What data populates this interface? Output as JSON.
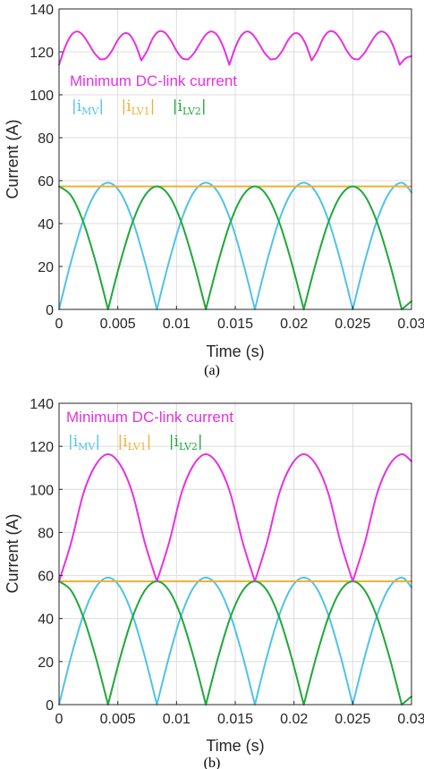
{
  "chart_data": [
    {
      "type": "line",
      "panel_label": "(a)",
      "xlabel": "Time (s)",
      "ylabel": "Current (A)",
      "xlim": [
        0,
        0.03
      ],
      "ylim": [
        0,
        140
      ],
      "x_ticks": [
        0,
        0.005,
        0.01,
        0.015,
        0.02,
        0.025,
        0.03
      ],
      "x_tick_labels": [
        "0",
        "0.005",
        "0.01",
        "0.015",
        "0.02",
        "0.025",
        "0.03"
      ],
      "y_ticks": [
        0,
        20,
        40,
        60,
        80,
        100,
        120,
        140
      ],
      "y_tick_labels": [
        "0",
        "20",
        "40",
        "60",
        "80",
        "100",
        "120",
        "140"
      ],
      "grid": true,
      "annotation": "Minimum DC-link current",
      "legend_text": {
        "i_mv": "|i",
        "i_mv_sub": "MV",
        "i_lv1": "|i",
        "i_lv1_sub": "LV1",
        "i_lv2": "|i",
        "i_lv2_sub": "LV2"
      },
      "legend_placement": "upper-left, inline text",
      "colors": {
        "mv": "#4fc3e8",
        "lv1": "#f0b030",
        "lv2": "#1fa83a",
        "min": "#e632e0"
      },
      "series": [
        {
          "key": "mv",
          "x": [
            0,
            0.00104,
            0.00208,
            0.00313,
            0.00417,
            0.00521,
            0.00625,
            0.00729,
            0.00833,
            0.00938,
            0.01042,
            0.01146,
            0.0125,
            0.01354,
            0.01458,
            0.01563,
            0.01667,
            0.01771,
            0.01875,
            0.01979,
            0.02083,
            0.02188,
            0.02292,
            0.02396,
            0.025,
            0.02604,
            0.02708,
            0.02813,
            0.02917,
            0.03
          ],
          "y": [
            0,
            22.6,
            41.7,
            54.5,
            59,
            54.5,
            41.7,
            22.6,
            0,
            22.6,
            41.7,
            54.5,
            59,
            54.5,
            41.7,
            22.6,
            0,
            22.6,
            41.7,
            54.5,
            59,
            54.5,
            41.7,
            22.6,
            0,
            22.6,
            41.7,
            54.5,
            59,
            54.5
          ]
        },
        {
          "key": "lv1",
          "x": [
            0,
            0.03
          ],
          "y": [
            57.3,
            57.3
          ]
        },
        {
          "key": "lv2",
          "x": [
            0,
            0.00104,
            0.00208,
            0.00313,
            0.00417,
            0.00521,
            0.00625,
            0.00729,
            0.00833,
            0.00938,
            0.01042,
            0.01146,
            0.0125,
            0.01354,
            0.01458,
            0.01563,
            0.01667,
            0.01771,
            0.01875,
            0.01979,
            0.02083,
            0.02188,
            0.02292,
            0.02396,
            0.025,
            0.02604,
            0.02708,
            0.02813,
            0.02917,
            0.03
          ],
          "y": [
            57.3,
            52.9,
            40.5,
            21.9,
            0,
            21.9,
            40.5,
            52.9,
            57.3,
            52.9,
            40.5,
            21.9,
            0,
            21.9,
            40.5,
            52.9,
            57.3,
            52.9,
            40.5,
            21.9,
            0,
            21.9,
            40.5,
            52.9,
            57.3,
            52.9,
            40.5,
            21.9,
            0,
            3.8
          ]
        },
        {
          "key": "min",
          "x": [
            0,
            0.0005,
            0.001,
            0.0015,
            0.002,
            0.0025,
            0.003,
            0.0035,
            0.004,
            0.0045,
            0.005,
            0.0055,
            0.006,
            0.0065,
            0.007,
            0.0075,
            0.008,
            0.0085,
            0.009,
            0.0095,
            0.01,
            0.0105,
            0.011,
            0.0115,
            0.012,
            0.0125,
            0.013,
            0.0135,
            0.014,
            0.0145,
            0.015,
            0.0155,
            0.016,
            0.0165,
            0.017,
            0.0175,
            0.018,
            0.0185,
            0.019,
            0.0195,
            0.02,
            0.0205,
            0.021,
            0.0215,
            0.022,
            0.0225,
            0.023,
            0.0235,
            0.024,
            0.0245,
            0.025,
            0.0255,
            0.026,
            0.0265,
            0.027,
            0.0275,
            0.028,
            0.0285,
            0.029,
            0.0295,
            0.03
          ],
          "y": [
            114,
            122,
            127.5,
            129.5,
            128,
            124,
            119.5,
            116.5,
            117,
            120.5,
            125.5,
            128.5,
            128,
            123.5,
            116,
            120.5,
            126.5,
            129.5,
            129,
            125.5,
            120.5,
            117,
            116.5,
            119.5,
            124,
            128,
            129.5,
            127.5,
            122,
            114,
            122,
            127.5,
            129.5,
            128,
            124,
            119.5,
            116.5,
            117,
            120.5,
            125.5,
            128.5,
            128,
            123.5,
            116,
            120.5,
            126.5,
            129.5,
            129,
            125.5,
            120.5,
            117,
            116.5,
            119.5,
            124,
            128,
            129.5,
            127.5,
            122,
            114,
            117,
            118
          ]
        }
      ]
    },
    {
      "type": "line",
      "panel_label": "(b)",
      "xlabel": "Time (s)",
      "ylabel": "Current (A)",
      "xlim": [
        0,
        0.03
      ],
      "ylim": [
        0,
        140
      ],
      "x_ticks": [
        0,
        0.005,
        0.01,
        0.015,
        0.02,
        0.025,
        0.03
      ],
      "x_tick_labels": [
        "0",
        "0.005",
        "0.01",
        "0.015",
        "0.02",
        "0.025",
        "0.03"
      ],
      "y_ticks": [
        0,
        20,
        40,
        60,
        80,
        100,
        120,
        140
      ],
      "y_tick_labels": [
        "0",
        "20",
        "40",
        "60",
        "80",
        "100",
        "120",
        "140"
      ],
      "grid": true,
      "annotation": "Minimum DC-link current",
      "legend_text": {
        "i_mv": "|i",
        "i_mv_sub": "MV",
        "i_lv1": "|i",
        "i_lv1_sub": "LV1",
        "i_lv2": "|i",
        "i_lv2_sub": "LV2"
      },
      "legend_placement": "upper-left, inline text",
      "colors": {
        "mv": "#4fc3e8",
        "lv1": "#f0b030",
        "lv2": "#1fa83a",
        "min": "#e632e0"
      },
      "series": [
        {
          "key": "mv",
          "x": [
            0,
            0.00104,
            0.00208,
            0.00313,
            0.00417,
            0.00521,
            0.00625,
            0.00729,
            0.00833,
            0.00938,
            0.01042,
            0.01146,
            0.0125,
            0.01354,
            0.01458,
            0.01563,
            0.01667,
            0.01771,
            0.01875,
            0.01979,
            0.02083,
            0.02188,
            0.02292,
            0.02396,
            0.025,
            0.02604,
            0.02708,
            0.02813,
            0.02917,
            0.03
          ],
          "y": [
            0,
            22.6,
            41.7,
            54.5,
            59,
            54.5,
            41.7,
            22.6,
            0,
            22.6,
            41.7,
            54.5,
            59,
            54.5,
            41.7,
            22.6,
            0,
            22.6,
            41.7,
            54.5,
            59,
            54.5,
            41.7,
            22.6,
            0,
            22.6,
            41.7,
            54.5,
            59,
            54.5
          ]
        },
        {
          "key": "lv1",
          "x": [
            0,
            0.03
          ],
          "y": [
            57.3,
            57.3
          ]
        },
        {
          "key": "lv2",
          "x": [
            0,
            0.00104,
            0.00208,
            0.00313,
            0.00417,
            0.00521,
            0.00625,
            0.00729,
            0.00833,
            0.00938,
            0.01042,
            0.01146,
            0.0125,
            0.01354,
            0.01458,
            0.01563,
            0.01667,
            0.01771,
            0.01875,
            0.01979,
            0.02083,
            0.02188,
            0.02292,
            0.02396,
            0.025,
            0.02604,
            0.02708,
            0.02813,
            0.02917,
            0.03
          ],
          "y": [
            57.3,
            52.9,
            40.5,
            21.9,
            0,
            21.9,
            40.5,
            52.9,
            57.3,
            52.9,
            40.5,
            21.9,
            0,
            21.9,
            40.5,
            52.9,
            57.3,
            52.9,
            40.5,
            21.9,
            0,
            21.9,
            40.5,
            52.9,
            57.3,
            52.9,
            40.5,
            21.9,
            0,
            3.8
          ]
        },
        {
          "key": "min",
          "x": [
            0,
            0.00104,
            0.00208,
            0.00313,
            0.00417,
            0.00521,
            0.00625,
            0.00729,
            0.00833,
            0.00938,
            0.01042,
            0.01146,
            0.0125,
            0.01354,
            0.01458,
            0.01563,
            0.01667,
            0.01771,
            0.01875,
            0.01979,
            0.02083,
            0.02188,
            0.02292,
            0.02396,
            0.025,
            0.02604,
            0.02708,
            0.02813,
            0.02917,
            0.03
          ],
          "y": [
            57.3,
            75.5,
            98.2,
            111.4,
            116.3,
            111.4,
            98.2,
            75.5,
            57.3,
            75.5,
            98.2,
            111.4,
            116.3,
            111.4,
            98.2,
            75.5,
            57.3,
            75.5,
            98.2,
            111.4,
            116.3,
            111.4,
            98.2,
            75.5,
            57.3,
            75.5,
            98.2,
            111.4,
            116.3,
            113
          ]
        }
      ]
    }
  ]
}
